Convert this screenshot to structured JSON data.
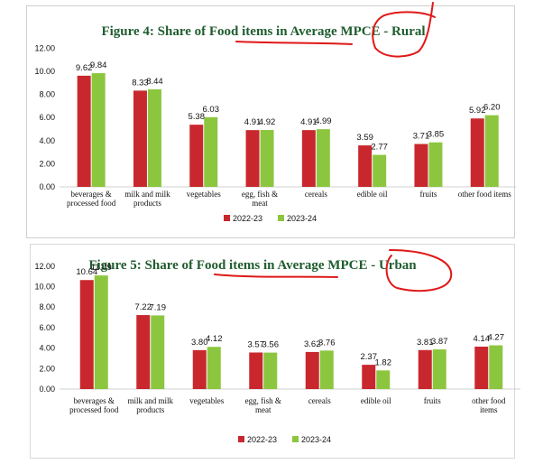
{
  "colors": {
    "s2022": "#c8282d",
    "s2023": "#8cc63f",
    "title": "#1f5c2e",
    "annotation": "#e01818"
  },
  "chart_data": [
    {
      "type": "bar",
      "title": "Figure 4: Share of Food items in Average MPCE - Rural",
      "categories": [
        [
          "beverages &",
          "processed food"
        ],
        [
          "milk and milk",
          "products"
        ],
        [
          "vegetables"
        ],
        [
          "egg, fish &",
          "meat"
        ],
        [
          "cereals"
        ],
        [
          "edible oil"
        ],
        [
          "fruits"
        ],
        [
          "other food items"
        ]
      ],
      "series": [
        {
          "name": "2022-23",
          "values": [
            9.62,
            8.33,
            5.38,
            4.91,
            4.91,
            3.59,
            3.71,
            5.92
          ],
          "labels": [
            "9.62",
            "8.33",
            "5.38",
            "4.91",
            "4.91",
            "3.59",
            "3.71",
            "5.92"
          ]
        },
        {
          "name": "2023-24",
          "values": [
            9.84,
            8.44,
            6.03,
            4.92,
            4.99,
            2.77,
            3.85,
            6.2
          ],
          "labels": [
            "9.84",
            "8.44",
            "6.03",
            "4.92",
            "4.99",
            "2.77",
            "3.85",
            "6.20"
          ]
        }
      ],
      "ylim": [
        0,
        12
      ],
      "yticks": [
        "0.00",
        "2.00",
        "4.00",
        "6.00",
        "8.00",
        "10.00",
        "12.00"
      ],
      "legend": "bottom"
    },
    {
      "type": "bar",
      "title": "Figure 5: Share of Food items in Average MPCE - Urban",
      "categories": [
        [
          "beverages &",
          "processed food"
        ],
        [
          "milk and milk",
          "products"
        ],
        [
          "vegetables"
        ],
        [
          "egg, fish &",
          "meat"
        ],
        [
          "cereals"
        ],
        [
          "edible oil"
        ],
        [
          "fruits"
        ],
        [
          "other food",
          "items"
        ]
      ],
      "series": [
        {
          "name": "2022-23",
          "values": [
            10.64,
            7.22,
            3.8,
            3.57,
            3.62,
            2.37,
            3.81,
            4.14
          ],
          "labels": [
            "10.64",
            "7.22",
            "3.80",
            "3.57",
            "3.62",
            "2.37",
            "3.81",
            "4.14"
          ]
        },
        {
          "name": "2023-24",
          "values": [
            11.09,
            7.19,
            4.12,
            3.56,
            3.76,
            1.82,
            3.87,
            4.27
          ],
          "labels": [
            "11.09",
            "7.19",
            "4.12",
            "3.56",
            "3.76",
            "1.82",
            "3.87",
            "4.27"
          ]
        }
      ],
      "ylim": [
        0,
        12
      ],
      "yticks": [
        "0.00",
        "2.00",
        "4.00",
        "6.00",
        "8.00",
        "10.00",
        "12.00"
      ],
      "legend": "bottom"
    }
  ]
}
